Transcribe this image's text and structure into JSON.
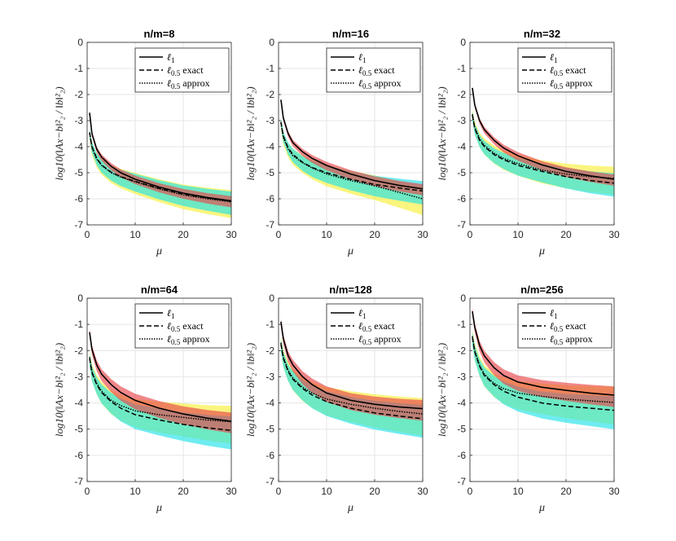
{
  "chart_data": {
    "type": "line",
    "x_label": "μ",
    "y_label": "log10(‖Ax−b‖²₂ / ‖b‖²₂)",
    "x_ticks": [
      "0",
      "10",
      "20",
      "30"
    ],
    "y_ticks": [
      "0",
      "-1",
      "-2",
      "-3",
      "-4",
      "-5",
      "-6",
      "-7"
    ],
    "xlim": [
      0,
      30
    ],
    "ylim": [
      -7,
      0
    ],
    "x_values": [
      0.5,
      1,
      2,
      3,
      5,
      7,
      10,
      15,
      20,
      25,
      30
    ],
    "legend": {
      "position": "top-right",
      "entries": [
        {
          "name": "ℓ1",
          "base": "ℓ",
          "sub": "1",
          "suffix": "",
          "style": "solid"
        },
        {
          "name": "ℓ0.5 exact",
          "base": "ℓ",
          "sub": "0.5",
          "suffix": " exact",
          "style": "dashed"
        },
        {
          "name": "ℓ0.5 approx",
          "base": "ℓ",
          "sub": "0.5",
          "suffix": " approx",
          "style": "dotted"
        }
      ]
    },
    "band_colors": {
      "l1": "#e8474c",
      "exact": "#22e2e8",
      "approx": "#f7f03a"
    },
    "panels": [
      {
        "title": "n/m=8",
        "series": [
          {
            "name": "ℓ1",
            "values": [
              -2.7,
              -3.5,
              -4.1,
              -4.4,
              -4.75,
              -5.0,
              -5.25,
              -5.55,
              -5.78,
              -5.95,
              -6.08
            ]
          },
          {
            "name": "ℓ0.5 exact",
            "values": [
              -3.45,
              -4.0,
              -4.45,
              -4.7,
              -4.98,
              -5.15,
              -5.33,
              -5.6,
              -5.82,
              -5.97,
              -6.1
            ]
          },
          {
            "name": "ℓ0.5 approx",
            "values": [
              -3.5,
              -4.05,
              -4.48,
              -4.72,
              -5.0,
              -5.17,
              -5.35,
              -5.62,
              -5.85,
              -6.0,
              -6.12
            ]
          }
        ]
      },
      {
        "title": "n/m=16",
        "series": [
          {
            "name": "ℓ1",
            "values": [
              -2.2,
              -2.9,
              -3.5,
              -3.85,
              -4.2,
              -4.45,
              -4.72,
              -5.05,
              -5.3,
              -5.48,
              -5.62
            ]
          },
          {
            "name": "ℓ0.5 exact",
            "values": [
              -3.05,
              -3.6,
              -4.05,
              -4.3,
              -4.6,
              -4.8,
              -5.0,
              -5.25,
              -5.45,
              -5.58,
              -5.7
            ]
          },
          {
            "name": "ℓ0.5 approx",
            "values": [
              -3.1,
              -3.65,
              -4.1,
              -4.35,
              -4.62,
              -4.82,
              -5.05,
              -5.3,
              -5.5,
              -5.75,
              -6.0
            ]
          }
        ]
      },
      {
        "title": "n/m=32",
        "series": [
          {
            "name": "ℓ1",
            "values": [
              -1.75,
              -2.4,
              -3.0,
              -3.35,
              -3.75,
              -4.05,
              -4.35,
              -4.7,
              -4.95,
              -5.12,
              -5.25
            ]
          },
          {
            "name": "ℓ0.5 exact",
            "values": [
              -2.8,
              -3.3,
              -3.75,
              -4.0,
              -4.3,
              -4.5,
              -4.72,
              -4.95,
              -5.15,
              -5.3,
              -5.4
            ]
          },
          {
            "name": "ℓ0.5 approx",
            "values": [
              -2.75,
              -3.25,
              -3.7,
              -3.95,
              -4.25,
              -4.45,
              -4.65,
              -4.9,
              -5.05,
              -5.15,
              -5.22
            ]
          }
        ]
      },
      {
        "title": "n/m=64",
        "series": [
          {
            "name": "ℓ1",
            "values": [
              -1.3,
              -1.95,
              -2.55,
              -2.9,
              -3.3,
              -3.6,
              -3.9,
              -4.2,
              -4.42,
              -4.58,
              -4.7
            ]
          },
          {
            "name": "ℓ0.5 exact",
            "values": [
              -2.3,
              -2.85,
              -3.3,
              -3.6,
              -3.95,
              -4.2,
              -4.45,
              -4.65,
              -4.82,
              -4.95,
              -5.05
            ]
          },
          {
            "name": "ℓ0.5 approx",
            "values": [
              -2.25,
              -2.8,
              -3.25,
              -3.55,
              -3.9,
              -4.1,
              -4.3,
              -4.45,
              -4.55,
              -4.65,
              -4.72
            ]
          }
        ]
      },
      {
        "title": "n/m=128",
        "series": [
          {
            "name": "ℓ1",
            "values": [
              -0.9,
              -1.55,
              -2.2,
              -2.55,
              -3.0,
              -3.3,
              -3.62,
              -3.9,
              -4.05,
              -4.15,
              -4.22
            ]
          },
          {
            "name": "ℓ0.5 exact",
            "values": [
              -1.75,
              -2.3,
              -2.8,
              -3.1,
              -3.45,
              -3.7,
              -3.95,
              -4.2,
              -4.38,
              -4.5,
              -4.6
            ]
          },
          {
            "name": "ℓ0.5 approx",
            "values": [
              -1.7,
              -2.25,
              -2.75,
              -3.05,
              -3.4,
              -3.62,
              -3.85,
              -4.05,
              -4.2,
              -4.32,
              -4.42
            ]
          }
        ]
      },
      {
        "title": "n/m=256",
        "series": [
          {
            "name": "ℓ1",
            "values": [
              -0.5,
              -1.1,
              -1.8,
              -2.2,
              -2.65,
              -2.95,
              -3.2,
              -3.4,
              -3.52,
              -3.62,
              -3.7
            ]
          },
          {
            "name": "ℓ0.5 exact",
            "values": [
              -1.5,
              -2.05,
              -2.6,
              -2.95,
              -3.3,
              -3.55,
              -3.78,
              -4.0,
              -4.12,
              -4.2,
              -4.28
            ]
          },
          {
            "name": "ℓ0.5 approx",
            "values": [
              -1.45,
              -2.0,
              -2.55,
              -2.9,
              -3.25,
              -3.45,
              -3.62,
              -3.75,
              -3.85,
              -3.92,
              -3.98
            ]
          }
        ]
      }
    ]
  }
}
